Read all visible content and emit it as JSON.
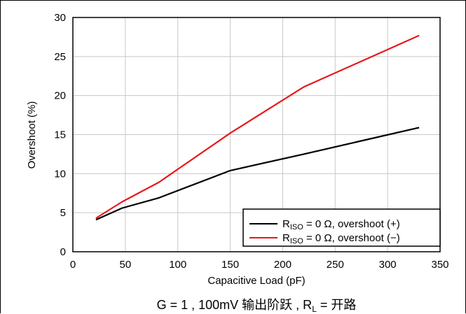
{
  "chart_data": {
    "type": "line",
    "xlabel": "Capacitive Load (pF)",
    "ylabel": "Overshoot (%)",
    "xlim": [
      0,
      350
    ],
    "ylim": [
      0,
      30
    ],
    "xticks": [
      0,
      50,
      100,
      150,
      200,
      250,
      300,
      350
    ],
    "yticks": [
      0,
      5,
      10,
      15,
      20,
      25,
      30
    ],
    "grid": true,
    "legend_position": "bottom-right",
    "series": [
      {
        "name_main": "R",
        "name_sub": "ISO",
        "name_rest": " = 0 Ω, overshoot (+)",
        "color": "#000000",
        "x": [
          22,
          47,
          82,
          150,
          220,
          330
        ],
        "y": [
          4.1,
          5.6,
          6.9,
          10.4,
          12.5,
          15.9
        ]
      },
      {
        "name_main": "R",
        "name_sub": "ISO",
        "name_rest": " = 0 Ω, overshoot (−)",
        "color": "#e8181b",
        "x": [
          22,
          47,
          82,
          150,
          220,
          330
        ],
        "y": [
          4.3,
          6.4,
          8.9,
          15.2,
          21.1,
          27.7
        ]
      }
    ],
    "caption": {
      "prefix": "G = 1 , 100mV 输出阶跃 , R",
      "sub": "L",
      "suffix": " = 开路"
    }
  }
}
